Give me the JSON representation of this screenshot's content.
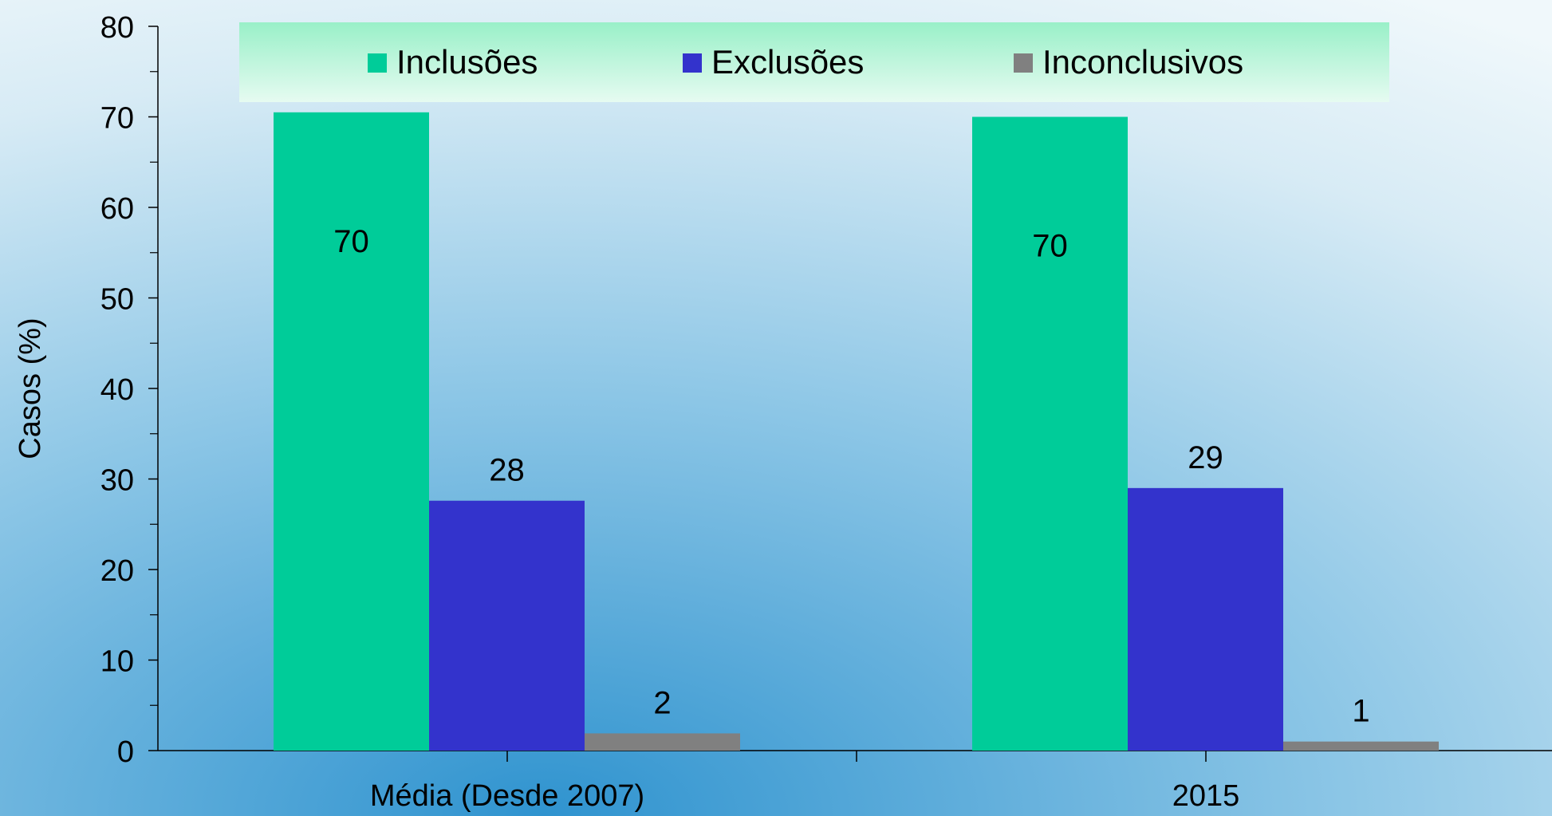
{
  "chart_data": {
    "type": "bar",
    "title": "",
    "xlabel": "",
    "ylabel": "Casos (%)",
    "ylim": [
      0,
      80
    ],
    "y_ticks": [
      0,
      10,
      20,
      30,
      40,
      50,
      60,
      70,
      80
    ],
    "categories": [
      "Média (Desde 2007)",
      "2015"
    ],
    "series": [
      {
        "name": "Inclusões",
        "color": "#00cc99",
        "values": [
          70.5,
          70
        ],
        "labels": [
          "70",
          "70"
        ]
      },
      {
        "name": "Exclusões",
        "color": "#3333cc",
        "values": [
          27.6,
          29
        ],
        "labels": [
          "28",
          "29"
        ]
      },
      {
        "name": "Inconclusivos",
        "color": "#808080",
        "values": [
          1.9,
          1
        ],
        "labels": [
          "2",
          "1"
        ]
      }
    ],
    "legend_position": "top",
    "grid": false,
    "data_labels": true
  }
}
